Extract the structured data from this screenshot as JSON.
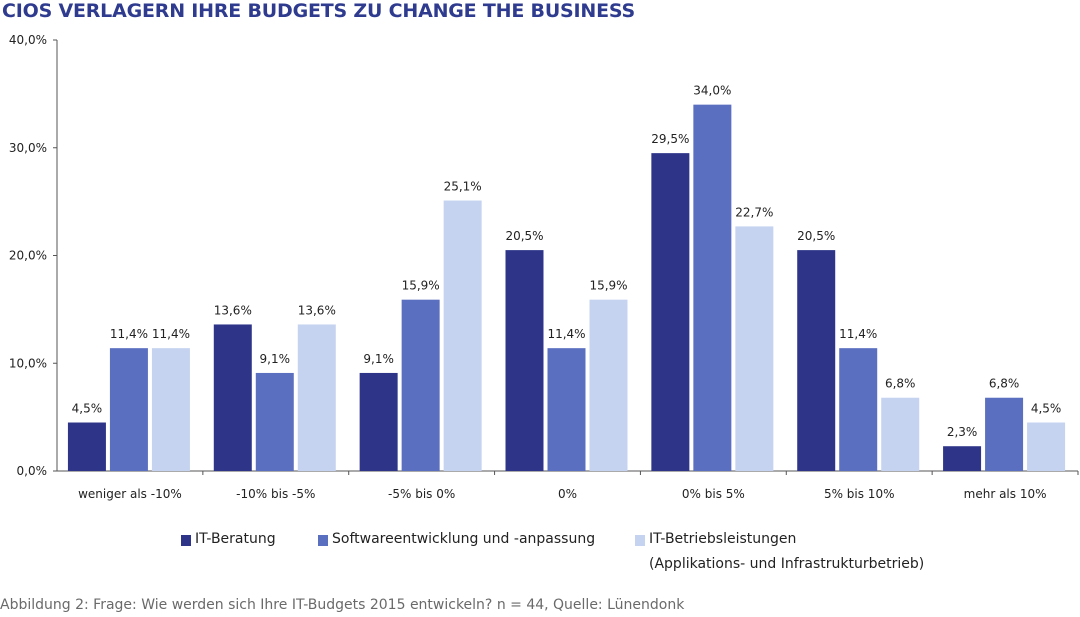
{
  "chart_data": {
    "type": "bar",
    "title": "CIOS VERLAGERN IHRE BUDGETS ZU CHANGE THE BUSINESS",
    "categories": [
      "weniger als -10%",
      "-10% bis -5%",
      "-5% bis 0%",
      "0%",
      "0% bis 5%",
      "5% bis 10%",
      "mehr als 10%"
    ],
    "series": [
      {
        "name": "IT-Beratung",
        "values": [
          4.5,
          13.6,
          9.1,
          20.5,
          29.5,
          20.5,
          2.3
        ],
        "labels": [
          "4,5%",
          "13,6%",
          "9,1%",
          "20,5%",
          "29,5%",
          "20,5%",
          "2,3%"
        ],
        "color": "#2e3589"
      },
      {
        "name": "Softwareentwicklung und -anpassung",
        "values": [
          11.4,
          9.1,
          15.9,
          11.4,
          34.0,
          11.4,
          6.8
        ],
        "labels": [
          "11,4%",
          "9,1%",
          "15,9%",
          "11,4%",
          "34,0%",
          "11,4%",
          "6,8%"
        ],
        "color": "#5b6fc0"
      },
      {
        "name": "IT-Betriebsleistungen",
        "name_line2": "(Applikations- und Infrastrukturbetrieb)",
        "values": [
          11.4,
          13.6,
          25.1,
          15.9,
          22.7,
          6.8,
          4.5
        ],
        "labels": [
          "11,4%",
          "13,6%",
          "25,1%",
          "15,9%",
          "22,7%",
          "6,8%",
          "4,5%"
        ],
        "color": "#c5d3f0"
      }
    ],
    "ylim": [
      0,
      40
    ],
    "yticks": [
      "0,0%",
      "10,0%",
      "20,0%",
      "30,0%",
      "40,0%"
    ],
    "grid": false,
    "legend": "bottom"
  },
  "caption": "Abbildung 2: Frage: Wie werden sich Ihre IT-Budgets 2015 entwickeln? n = 44, Quelle: Lünendonk"
}
